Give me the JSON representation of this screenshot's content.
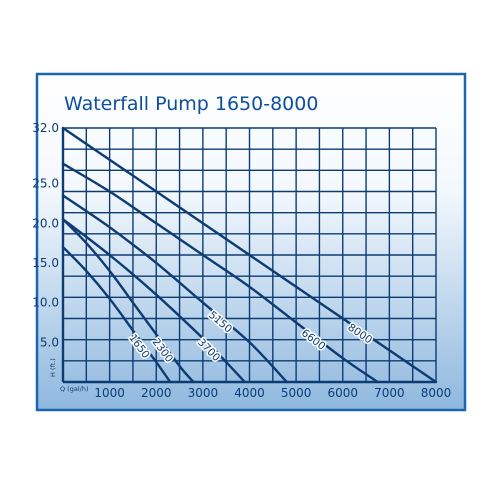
{
  "chart_data": {
    "type": "line",
    "title": "Waterfall Pump 1650-8000",
    "xlabel": "Q (gal/h)",
    "ylabel": "H (ft.)",
    "xlim": [
      0,
      8000
    ],
    "ylim": [
      0,
      32
    ],
    "x_ticks": [
      "1000",
      "2000",
      "3000",
      "4000",
      "5000",
      "6000",
      "7000",
      "8000"
    ],
    "x_tick_values": [
      1000,
      2000,
      3000,
      4000,
      5000,
      6000,
      7000,
      8000
    ],
    "y_ticks": [
      "5.0",
      "10.0",
      "15.0",
      "20.0",
      "25.0",
      "32.0"
    ],
    "y_tick_values": [
      5,
      10,
      15,
      20,
      25,
      32
    ],
    "grid": true,
    "series": [
      {
        "name": "1650",
        "x": [
          0,
          500,
          1000,
          1500,
          2000,
          2300
        ],
        "y": [
          17,
          14,
          10.5,
          6.5,
          2.5,
          0
        ]
      },
      {
        "name": "2300",
        "x": [
          0,
          500,
          1000,
          1500,
          2000,
          2500,
          2800
        ],
        "y": [
          20.5,
          17.5,
          14,
          10,
          6,
          2,
          0
        ]
      },
      {
        "name": "3700",
        "x": [
          0,
          1000,
          2000,
          3000,
          3500,
          3900
        ],
        "y": [
          20.5,
          16,
          11,
          5.5,
          2.5,
          0
        ]
      },
      {
        "name": "5150",
        "x": [
          0,
          1000,
          2000,
          3000,
          4000,
          4800
        ],
        "y": [
          23.5,
          19.5,
          15,
          10,
          5,
          0
        ]
      },
      {
        "name": "6600",
        "x": [
          0,
          1000,
          2000,
          3000,
          4000,
          5000,
          6000,
          6750
        ],
        "y": [
          27.5,
          24,
          20,
          16,
          12,
          7.5,
          3,
          0
        ]
      },
      {
        "name": "8000",
        "x": [
          0,
          1000,
          2000,
          3000,
          4000,
          5000,
          6000,
          7000,
          8000
        ],
        "y": [
          32,
          28,
          24,
          20,
          16,
          12,
          8,
          4,
          0
        ]
      }
    ],
    "colors": {
      "line": "#0d3c74",
      "frame": "#1a67b0",
      "title": "#0d4f9e",
      "bg_top": "#ffffff",
      "bg_bottom": "#8fb8de"
    }
  }
}
